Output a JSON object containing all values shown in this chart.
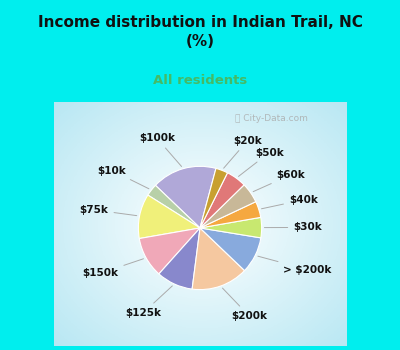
{
  "title": "Income distribution in Indian Trail, NC\n(%)",
  "subtitle": "All residents",
  "title_color": "#111111",
  "subtitle_color": "#44bb66",
  "bg_cyan": "#00EEEE",
  "labels": [
    "$100k",
    "$10k",
    "$75k",
    "$150k",
    "$125k",
    "$200k",
    "> $200k",
    "$30k",
    "$40k",
    "$60k",
    "$50k",
    "$20k"
  ],
  "values": [
    16,
    3,
    11,
    10,
    9,
    14,
    9,
    5,
    4,
    5,
    5,
    3
  ],
  "colors": [
    "#b0a8d8",
    "#b8d0a8",
    "#f0f07a",
    "#f0a8b8",
    "#8888cc",
    "#f5c8a0",
    "#88aadd",
    "#c8e870",
    "#f5a840",
    "#c8b898",
    "#e07878",
    "#c8a030"
  ],
  "label_fontsize": 7.5,
  "watermark": "ⓘ City-Data.com",
  "start_angle": 75
}
